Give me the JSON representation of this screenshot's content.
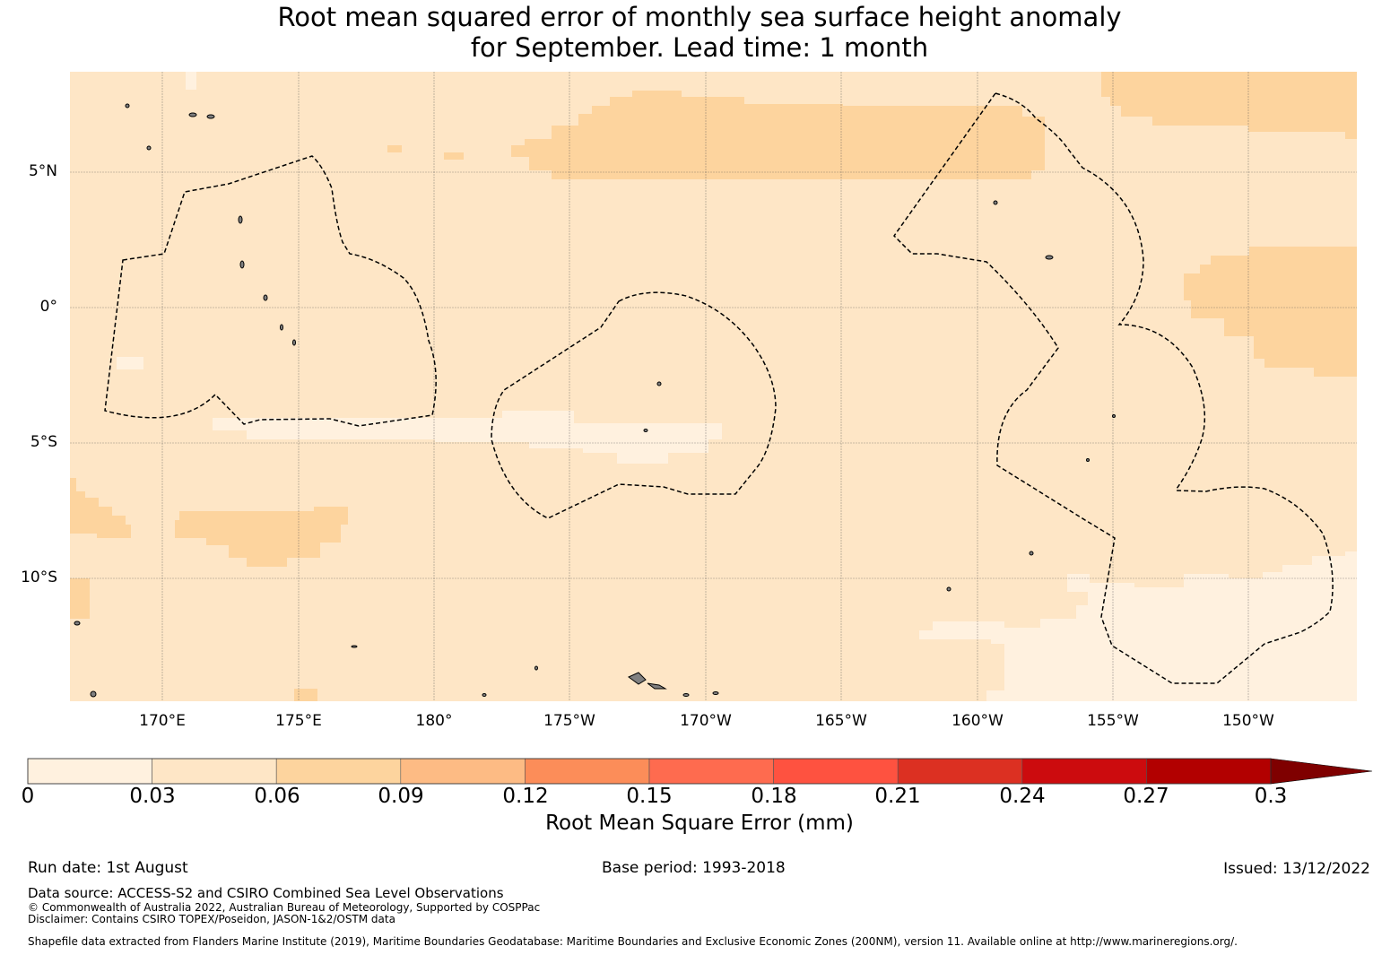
{
  "title": {
    "line1": "Root mean squared error of monthly sea surface height anomaly",
    "line2": "for September. Lead time: 1 month"
  },
  "map": {
    "lat_labels": [
      "5°N",
      "0°",
      "5°S",
      "10°S"
    ],
    "lon_labels": [
      "170°E",
      "175°E",
      "180°",
      "175°W",
      "170°W",
      "165°W",
      "160°W",
      "155°W",
      "150°W"
    ],
    "background_color": "#fee6c6",
    "low_color": "#fff1df",
    "mid_color": "#fdd49e",
    "land_color": "#808080",
    "boundary_style": "dashed"
  },
  "colorbar": {
    "ticks": [
      "0",
      "0.03",
      "0.06",
      "0.09",
      "0.12",
      "0.15",
      "0.18",
      "0.21",
      "0.24",
      "0.27",
      "0.3"
    ],
    "colors": [
      "#fff1df",
      "#fee6c6",
      "#fdd49e",
      "#fdbb84",
      "#fc8d59",
      "#fe6b4f",
      "#fe5240",
      "#dc3022",
      "#cc0b0e",
      "#b20000",
      "#7f0000"
    ],
    "extend": "max",
    "label": "Root Mean Square Error (mm)"
  },
  "footer": {
    "run_date": "Run date: 1st August",
    "base_period": "Base period: 1993-2018",
    "issued": "Issued: 13/12/2022",
    "data_source": "Data source: ACCESS-S2 and CSIRO Combined Sea Level Observations",
    "copyright": "© Commonwealth of Australia 2022, Australian Bureau of Meteorology, Supported by COSPPac",
    "disclaimer": "Disclaimer: Contains CSIRO TOPEX/Poseidon, JASON-1&2/OSTM data",
    "shapefile": "Shapefile data extracted from Flanders Marine Institute (2019), Maritime Boundaries Geodatabase: Maritime Boundaries and Exclusive Economic Zones (200NM), version 11. Available online at http://www.marineregions.org/."
  }
}
